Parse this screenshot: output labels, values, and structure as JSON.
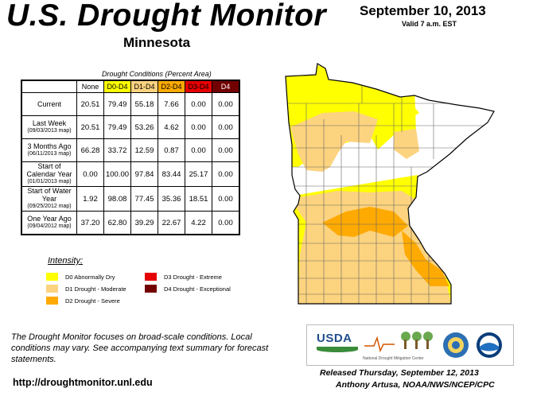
{
  "header": {
    "title": "U.S. Drought Monitor",
    "state": "Minnesota",
    "date": "September 10, 2013",
    "valid": "Valid 7 a.m. EST"
  },
  "table": {
    "caption": "Drought Conditions (Percent Area)",
    "columns": [
      {
        "label": "None",
        "color": "#ffffff"
      },
      {
        "label": "D0-D4",
        "color": "#ffff00"
      },
      {
        "label": "D1-D4",
        "color": "#fcd37f"
      },
      {
        "label": "D2-D4",
        "color": "#ffaa00"
      },
      {
        "label": "D3-D4",
        "color": "#e60000"
      },
      {
        "label": "D4",
        "color": "#730000"
      }
    ],
    "rows": [
      {
        "label": "Current",
        "sub": "",
        "values": [
          "20.51",
          "79.49",
          "55.18",
          "7.66",
          "0.00",
          "0.00"
        ]
      },
      {
        "label": "Last Week",
        "sub": "(09/03/2013 map)",
        "values": [
          "20.51",
          "79.49",
          "53.26",
          "4.62",
          "0.00",
          "0.00"
        ]
      },
      {
        "label": "3 Months Ago",
        "sub": "(06/11/2013 map)",
        "values": [
          "66.28",
          "33.72",
          "12.59",
          "0.87",
          "0.00",
          "0.00"
        ]
      },
      {
        "label": "Start of Calendar Year",
        "sub": "(01/01/2013 map)",
        "values": [
          "0.00",
          "100.00",
          "97.84",
          "83.44",
          "25.17",
          "0.00"
        ]
      },
      {
        "label": "Start of Water Year",
        "sub": "(09/25/2012 map)",
        "values": [
          "1.92",
          "98.08",
          "77.45",
          "35.36",
          "18.51",
          "0.00"
        ]
      },
      {
        "label": "One Year Ago",
        "sub": "(09/04/2012 map)",
        "values": [
          "37.20",
          "62.80",
          "39.29",
          "22.67",
          "4.22",
          "0.00"
        ]
      }
    ]
  },
  "legend": {
    "title": "Intensity:",
    "items": [
      {
        "label": "D0 Abnormally Dry",
        "color": "#ffff00"
      },
      {
        "label": "D1 Drought - Moderate",
        "color": "#fcd37f"
      },
      {
        "label": "D2 Drought - Severe",
        "color": "#ffaa00"
      },
      {
        "label": "D3 Drought - Extreme",
        "color": "#e60000"
      },
      {
        "label": "D4 Drought - Exceptional",
        "color": "#730000"
      }
    ]
  },
  "note": "The Drought Monitor focuses on broad-scale conditions. Local conditions may vary. See accompanying text summary for forecast statements.",
  "url": "http://droughtmonitor.unl.edu",
  "logos": {
    "usda": "USDA",
    "ndmc": "National Drought Mitigation Center"
  },
  "released": "Released Thursday, September 12, 2013",
  "author": "Anthony Artusa, NOAA/NWS/NCEP/CPC"
}
